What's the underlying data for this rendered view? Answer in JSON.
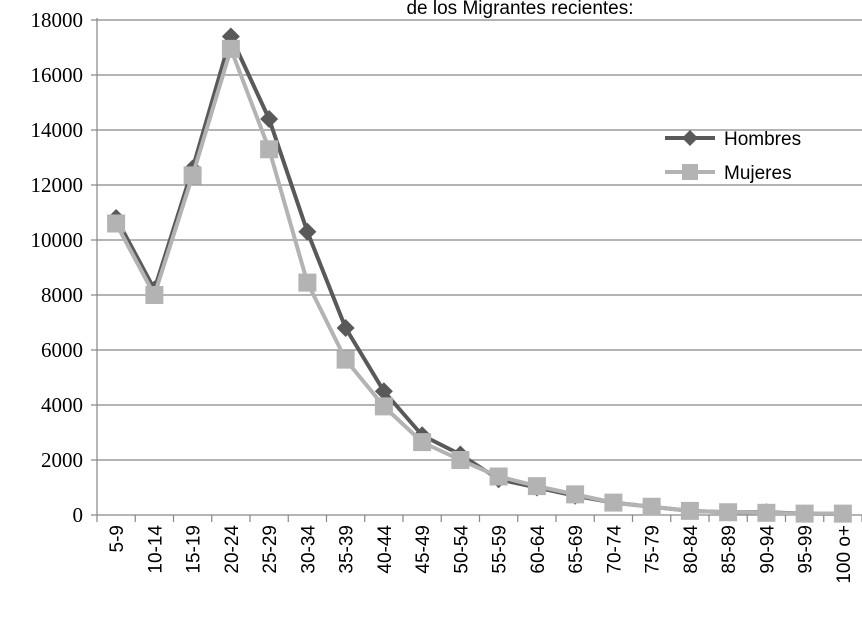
{
  "chart_data": {
    "type": "line",
    "title": "de los Migrantes recientes:",
    "xlabel": "",
    "ylabel": "",
    "ylim": [
      0,
      18000
    ],
    "yticks": [
      0,
      2000,
      4000,
      6000,
      8000,
      10000,
      12000,
      14000,
      16000,
      18000
    ],
    "grid": true,
    "legend_position": "right",
    "categories": [
      "5-9",
      "10-14",
      "15-19",
      "20-24",
      "25-29",
      "30-34",
      "35-39",
      "40-44",
      "45-49",
      "50-54",
      "55-59",
      "60-64",
      "65-69",
      "70-74",
      "75-79",
      "80-84",
      "85-89",
      "90-94",
      "95-99",
      "100 o+"
    ],
    "series": [
      {
        "name": "Hombres",
        "color": "#595959",
        "marker": "diamond",
        "values": [
          10800,
          8200,
          12600,
          17400,
          14400,
          10300,
          6800,
          4500,
          2900,
          2200,
          1300,
          1000,
          700,
          450,
          300,
          150,
          100,
          100,
          50,
          40
        ]
      },
      {
        "name": "Mujeres",
        "color": "#b3b3b3",
        "marker": "square",
        "values": [
          10600,
          8000,
          12350,
          16950,
          13300,
          8450,
          5650,
          3950,
          2650,
          2000,
          1400,
          1050,
          750,
          450,
          300,
          150,
          100,
          80,
          50,
          50
        ]
      }
    ]
  }
}
